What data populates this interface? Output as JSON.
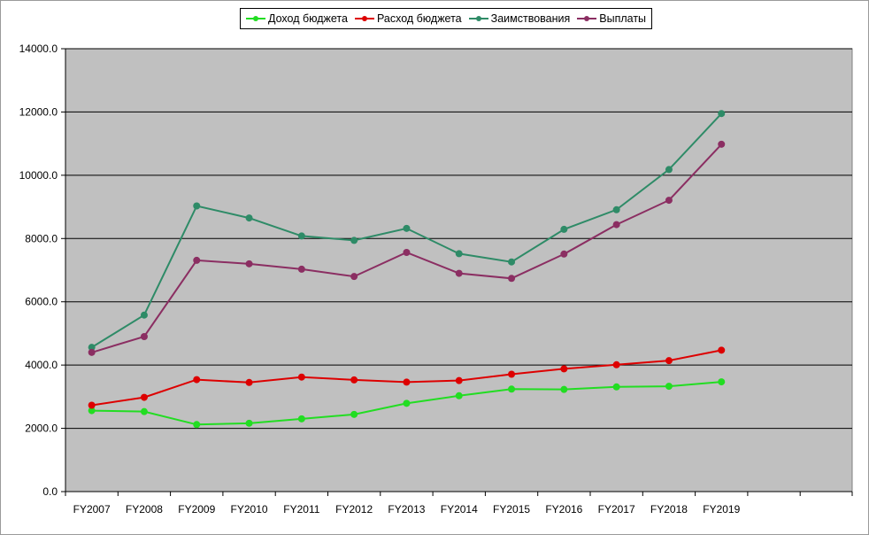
{
  "chart_data": {
    "type": "line",
    "title": "",
    "xlabel": "",
    "ylabel": "",
    "categories": [
      "FY2007",
      "FY2008",
      "FY2009",
      "FY2010",
      "FY2011",
      "FY2012",
      "FY2013",
      "FY2014",
      "FY2015",
      "FY2016",
      "FY2017",
      "FY2018",
      "FY2019"
    ],
    "ylim": [
      0,
      14000
    ],
    "yticks": [
      "0.0",
      "2000.0",
      "4000.0",
      "6000.0",
      "8000.0",
      "10000.0",
      "12000.0",
      "14000.0"
    ],
    "grid": true,
    "legend_position": "top-center",
    "plot_background": "#c0c0c0",
    "series": [
      {
        "name": "Доход бюджета",
        "color": "#22dd22",
        "values": [
          2560,
          2530,
          2120,
          2160,
          2300,
          2440,
          2790,
          3030,
          3240,
          3230,
          3310,
          3330,
          3470
        ]
      },
      {
        "name": "Расход бюджета",
        "color": "#dd0000",
        "values": [
          2730,
          2980,
          3540,
          3450,
          3620,
          3530,
          3460,
          3510,
          3710,
          3880,
          4010,
          4140,
          4470
        ]
      },
      {
        "name": "Заимствования",
        "color": "#2e8b67",
        "values": [
          4560,
          5580,
          9030,
          8650,
          8080,
          7940,
          8320,
          7520,
          7260,
          8290,
          8910,
          10180,
          11950
        ]
      },
      {
        "name": "Выплаты",
        "color": "#8b2e62",
        "values": [
          4400,
          4900,
          7310,
          7200,
          7030,
          6800,
          7560,
          6900,
          6740,
          7510,
          8440,
          9210,
          10980
        ]
      }
    ]
  }
}
